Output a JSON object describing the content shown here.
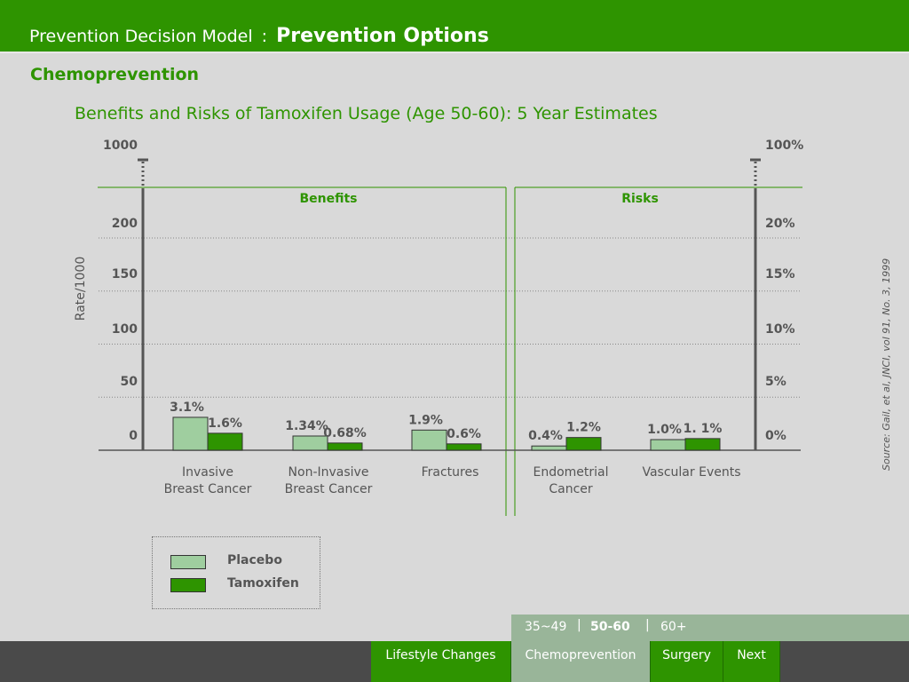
{
  "header": {
    "app_title": "Prevention Decision Model",
    "separator": ":",
    "page_title": "Prevention Options"
  },
  "section": {
    "title": "Chemoprevention"
  },
  "source_note": "Source: Gail, et al, JNCI, vol 91, No. 3, 1999",
  "colors": {
    "brand": "#2e9400",
    "placebo": "#9fce9f",
    "tamoxifen": "#2e9400",
    "active_tab": "#99b599"
  },
  "chart_data": {
    "type": "bar",
    "title": "Benefits and Risks of Tamoxifen Usage (Age 50-60): 5 Year Estimates",
    "ylabel": "Rate/1000",
    "ylim": [
      0,
      200
    ],
    "left_ticks": [
      "0",
      "50",
      "100",
      "150",
      "200",
      "1000"
    ],
    "right_ticks": [
      "0%",
      "5%",
      "10%",
      "15%",
      "20%",
      "100%"
    ],
    "axis_break": true,
    "groups": [
      {
        "label": "Benefits",
        "categories": [
          0,
          1,
          2
        ]
      },
      {
        "label": "Risks",
        "categories": [
          3,
          4
        ]
      }
    ],
    "categories": [
      [
        "Invasive",
        "Breast Cancer"
      ],
      [
        "Non-Invasive",
        "Breast Cancer"
      ],
      [
        "Fractures"
      ],
      [
        "Endometrial",
        "Cancer"
      ],
      [
        "Vascular Events"
      ]
    ],
    "series": [
      {
        "name": "Placebo",
        "color": "#9fce9f",
        "values": [
          31,
          13.4,
          19,
          4,
          10
        ],
        "labels": [
          "3.1%",
          "1.34%",
          "1.9%",
          "0.4%",
          "1.0%"
        ]
      },
      {
        "name": "Tamoxifen",
        "color": "#2e9400",
        "values": [
          16,
          6.8,
          6,
          12,
          11
        ],
        "labels": [
          "1.6%",
          "0.68%",
          "0.6%",
          "1.2%",
          "1. 1%"
        ]
      }
    ],
    "grid": true,
    "legend": "bottom-left"
  },
  "age_selector": {
    "options": [
      "35~49",
      "50-60",
      "60+"
    ],
    "separator": "|",
    "selected": "50-60"
  },
  "nav": {
    "buttons": [
      "Lifestyle Changes",
      "Chemoprevention",
      "Surgery",
      "Next"
    ],
    "active": "Chemoprevention"
  }
}
